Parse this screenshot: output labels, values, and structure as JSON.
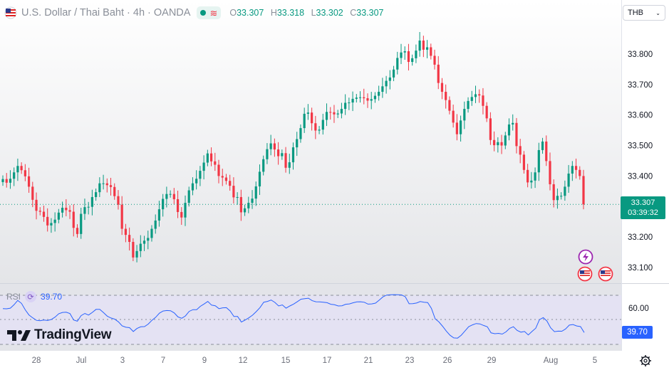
{
  "header": {
    "symbol": "U.S. Dollar / Thai Baht · 4h · OANDA",
    "open_label": "O",
    "open": "33.307",
    "high_label": "H",
    "high": "33.318",
    "low_label": "L",
    "low": "33.302",
    "close_label": "C",
    "close": "33.307"
  },
  "currency_select": {
    "value": "THB"
  },
  "price_axis": {
    "ticks": [
      "33.800",
      "33.700",
      "33.600",
      "33.500",
      "33.400",
      "33.200",
      "33.100"
    ]
  },
  "last_price": {
    "price": "33.307",
    "countdown": "03:39:32"
  },
  "rsi": {
    "label": "RSI",
    "value": "39.70",
    "axis_tick": "60.00"
  },
  "time_axis": {
    "ticks": [
      "28",
      "Jul",
      "3",
      "7",
      "9",
      "12",
      "15",
      "17",
      "21",
      "23",
      "26",
      "29",
      "Aug",
      "5"
    ]
  },
  "branding": {
    "name": "TradingView"
  },
  "chart_data": {
    "type": "candlestick",
    "interval": "4h",
    "ylim": [
      33.05,
      33.9
    ],
    "last_price": 33.307,
    "colors": {
      "up": "#089981",
      "down": "#f23645",
      "rsi": "#2962ff"
    },
    "closes": [
      33.39,
      33.378,
      33.391,
      33.412,
      33.433,
      33.419,
      33.399,
      33.365,
      33.322,
      33.286,
      33.283,
      33.266,
      33.238,
      33.246,
      33.257,
      33.28,
      33.296,
      33.288,
      33.283,
      33.23,
      33.21,
      33.276,
      33.298,
      33.299,
      33.331,
      33.347,
      33.376,
      33.376,
      33.37,
      33.364,
      33.334,
      33.306,
      33.227,
      33.207,
      33.184,
      33.133,
      33.154,
      33.178,
      33.188,
      33.197,
      33.227,
      33.254,
      33.291,
      33.325,
      33.341,
      33.341,
      33.324,
      33.282,
      33.264,
      33.312,
      33.353,
      33.376,
      33.391,
      33.417,
      33.444,
      33.474,
      33.448,
      33.437,
      33.4,
      33.395,
      33.384,
      33.368,
      33.33,
      33.331,
      33.281,
      33.294,
      33.312,
      33.326,
      33.366,
      33.414,
      33.455,
      33.488,
      33.507,
      33.487,
      33.465,
      33.475,
      33.427,
      33.445,
      33.494,
      33.521,
      33.557,
      33.604,
      33.608,
      33.573,
      33.549,
      33.552,
      33.584,
      33.61,
      33.609,
      33.602,
      33.605,
      33.62,
      33.64,
      33.641,
      33.653,
      33.657,
      33.658,
      33.655,
      33.647,
      33.652,
      33.663,
      33.676,
      33.694,
      33.712,
      33.723,
      33.749,
      33.787,
      33.805,
      33.809,
      33.774,
      33.786,
      33.811,
      33.844,
      33.814,
      33.822,
      33.794,
      33.765,
      33.705,
      33.676,
      33.649,
      33.614,
      33.575,
      33.537,
      33.582,
      33.62,
      33.646,
      33.659,
      33.668,
      33.664,
      33.63,
      33.589,
      33.518,
      33.501,
      33.511,
      33.5,
      33.533,
      33.569,
      33.574,
      33.498,
      33.47,
      33.42,
      33.379,
      33.385,
      33.412,
      33.485,
      33.513,
      33.449,
      33.373,
      33.321,
      33.335,
      33.335,
      33.365,
      33.408,
      33.433,
      33.42,
      33.4,
      33.307
    ],
    "rsi_values": [
      59.1,
      59.0,
      59.5,
      62.3,
      65.8,
      63.4,
      58.2,
      54.0,
      51.7,
      49.6,
      49.3,
      49.8,
      49.5,
      50.3,
      52.2,
      55.0,
      56.0,
      56.2,
      55.1,
      49.9,
      48.9,
      53.4,
      55.2,
      53.9,
      56.0,
      58.5,
      58.6,
      55.9,
      53.0,
      51.5,
      50.6,
      48.4,
      45.1,
      44.0,
      43.6,
      40.5,
      43.0,
      44.3,
      44.5,
      46.5,
      49.6,
      52.1,
      55.4,
      57.2,
      57.6,
      57.4,
      55.6,
      52.4,
      51.3,
      53.2,
      56.9,
      58.3,
      58.3,
      61.0,
      62.9,
      65.0,
      62.0,
      61.5,
      59.1,
      59.8,
      59.9,
      57.2,
      52.7,
      52.7,
      48.2,
      49.8,
      51.6,
      53.8,
      56.7,
      60.0,
      64.4,
      65.0,
      66.1,
      64.2,
      61.3,
      62.2,
      59.5,
      61.3,
      62.8,
      64.7,
      66.8,
      67.2,
      67.6,
      65.6,
      64.7,
      64.6,
      64.4,
      64.0,
      62.7,
      62.3,
      61.3,
      61.5,
      62.7,
      63.0,
      63.9,
      64.6,
      64.7,
      64.3,
      62.8,
      63.0,
      63.6,
      66.1,
      68.7,
      70.2,
      70.4,
      70.5,
      70.4,
      70.3,
      68.8,
      63.1,
      63.2,
      63.7,
      64.9,
      64.4,
      64.1,
      59.4,
      50.8,
      48.3,
      44.8,
      40.8,
      37.4,
      35.3,
      35.1,
      37.5,
      40.9,
      44.4,
      45.9,
      47.0,
      46.7,
      45.4,
      44.3,
      39.4,
      38.7,
      39.0,
      38.4,
      40.2,
      43.1,
      44.4,
      41.4,
      40.0,
      40.5,
      37.7,
      40.6,
      43.2,
      50.2,
      51.8,
      49.0,
      43.5,
      40.4,
      40.8,
      40.7,
      42.6,
      45.7,
      46.2,
      45.0,
      44.5,
      39.7
    ],
    "rsi_ylim": [
      34,
      72
    ]
  }
}
